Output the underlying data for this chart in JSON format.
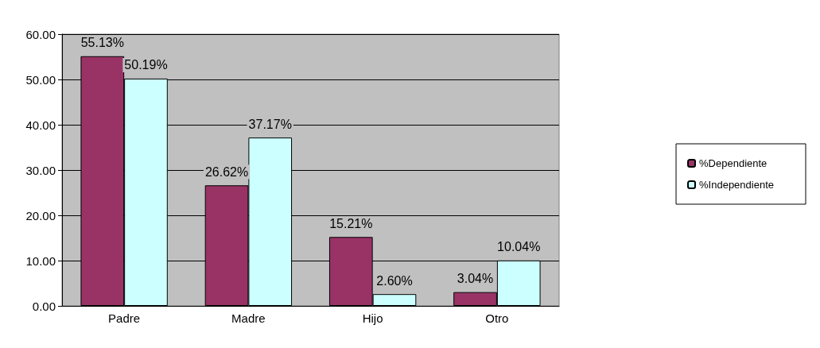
{
  "chart_data": {
    "type": "bar",
    "categories": [
      "Padre",
      "Madre",
      "Hijo",
      "Otro"
    ],
    "series": [
      {
        "name": "%Dependiente",
        "color": "#993366",
        "values": [
          55.13,
          26.62,
          15.21,
          3.04
        ],
        "value_labels": [
          "55.13%",
          "26.62%",
          "15.21%",
          "3.04%"
        ]
      },
      {
        "name": "%Independiente",
        "color": "#ccffff",
        "values": [
          50.19,
          37.17,
          2.6,
          10.04
        ],
        "value_labels": [
          "50.19%",
          "37.17%",
          "2.60%",
          "10.04%"
        ]
      }
    ],
    "ylim": [
      0,
      60
    ],
    "yticks": [
      {
        "value": 0,
        "label": "0.00"
      },
      {
        "value": 10,
        "label": "10.00"
      },
      {
        "value": 20,
        "label": "20.00"
      },
      {
        "value": 30,
        "label": "30.00"
      },
      {
        "value": 40,
        "label": "40.00"
      },
      {
        "value": 50,
        "label": "50.00"
      },
      {
        "value": 60,
        "label": "60.00"
      }
    ],
    "grid": "y",
    "legend": "right"
  }
}
